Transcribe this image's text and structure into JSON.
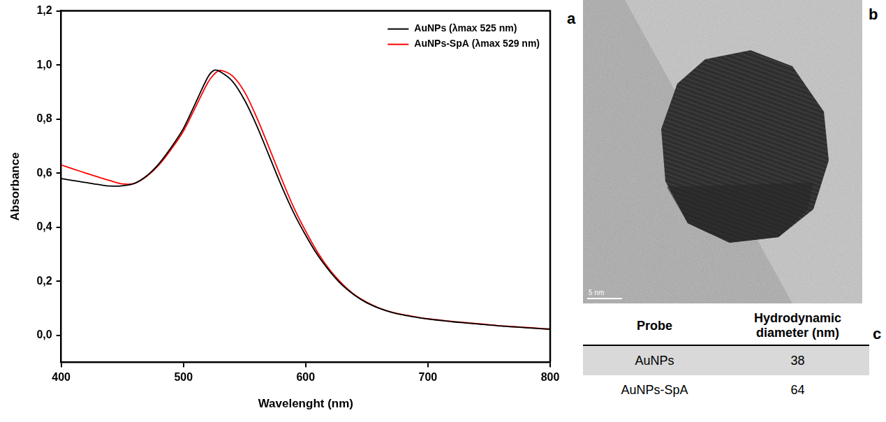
{
  "chart_data": {
    "type": "line",
    "x": [
      400,
      410,
      420,
      430,
      440,
      450,
      460,
      470,
      480,
      490,
      500,
      510,
      520,
      525,
      530,
      540,
      550,
      560,
      570,
      580,
      590,
      600,
      610,
      620,
      630,
      640,
      650,
      660,
      670,
      680,
      690,
      700,
      710,
      720,
      730,
      740,
      750,
      760,
      770,
      780,
      790,
      800
    ],
    "series": [
      {
        "name": "AuNPs (λmax 525 nm)",
        "color": "#000000",
        "values": [
          0.58,
          0.572,
          0.565,
          0.558,
          0.552,
          0.553,
          0.562,
          0.59,
          0.635,
          0.695,
          0.765,
          0.86,
          0.955,
          0.98,
          0.975,
          0.94,
          0.87,
          0.775,
          0.665,
          0.555,
          0.455,
          0.37,
          0.295,
          0.235,
          0.185,
          0.148,
          0.12,
          0.1,
          0.085,
          0.075,
          0.067,
          0.06,
          0.055,
          0.05,
          0.046,
          0.042,
          0.038,
          0.034,
          0.031,
          0.028,
          0.025,
          0.022
        ]
      },
      {
        "name": "AuNPs-SpA (λmax 529 nm)",
        "color": "#ff0000",
        "values": [
          0.63,
          0.615,
          0.6,
          0.586,
          0.572,
          0.56,
          0.562,
          0.588,
          0.63,
          0.688,
          0.755,
          0.845,
          0.935,
          0.965,
          0.98,
          0.96,
          0.9,
          0.805,
          0.695,
          0.582,
          0.475,
          0.385,
          0.305,
          0.24,
          0.19,
          0.15,
          0.122,
          0.101,
          0.086,
          0.076,
          0.068,
          0.061,
          0.056,
          0.051,
          0.047,
          0.043,
          0.039,
          0.035,
          0.032,
          0.029,
          0.026,
          0.023
        ]
      }
    ],
    "x_label": "Wavelenght (nm)",
    "y_label": "Absorbance",
    "xlim": [
      400,
      800
    ],
    "xticks": [
      400,
      500,
      600,
      700,
      800
    ],
    "ylim": [
      -0.1,
      1.2
    ],
    "yticks": [
      {
        "value": 0,
        "label": "0,0"
      },
      {
        "value": 0.2,
        "label": "0,2"
      },
      {
        "value": 0.4,
        "label": "0,4"
      },
      {
        "value": 0.6,
        "label": "0,6"
      },
      {
        "value": 0.8,
        "label": "0,8"
      },
      {
        "value": 1.0,
        "label": "1,0"
      },
      {
        "value": 1.2,
        "label": "1,2"
      }
    ],
    "grid": false,
    "legend": "upper right"
  },
  "panel_labels": {
    "chart": "a",
    "image": "b",
    "table": "c"
  },
  "image": {
    "scale_bar": "5 nm"
  },
  "table": {
    "header": [
      "Probe",
      "Hydrodynamic diameter (nm)"
    ],
    "rows": [
      [
        "AuNPs",
        38
      ],
      [
        "AuNPs-SpA",
        64
      ]
    ]
  }
}
